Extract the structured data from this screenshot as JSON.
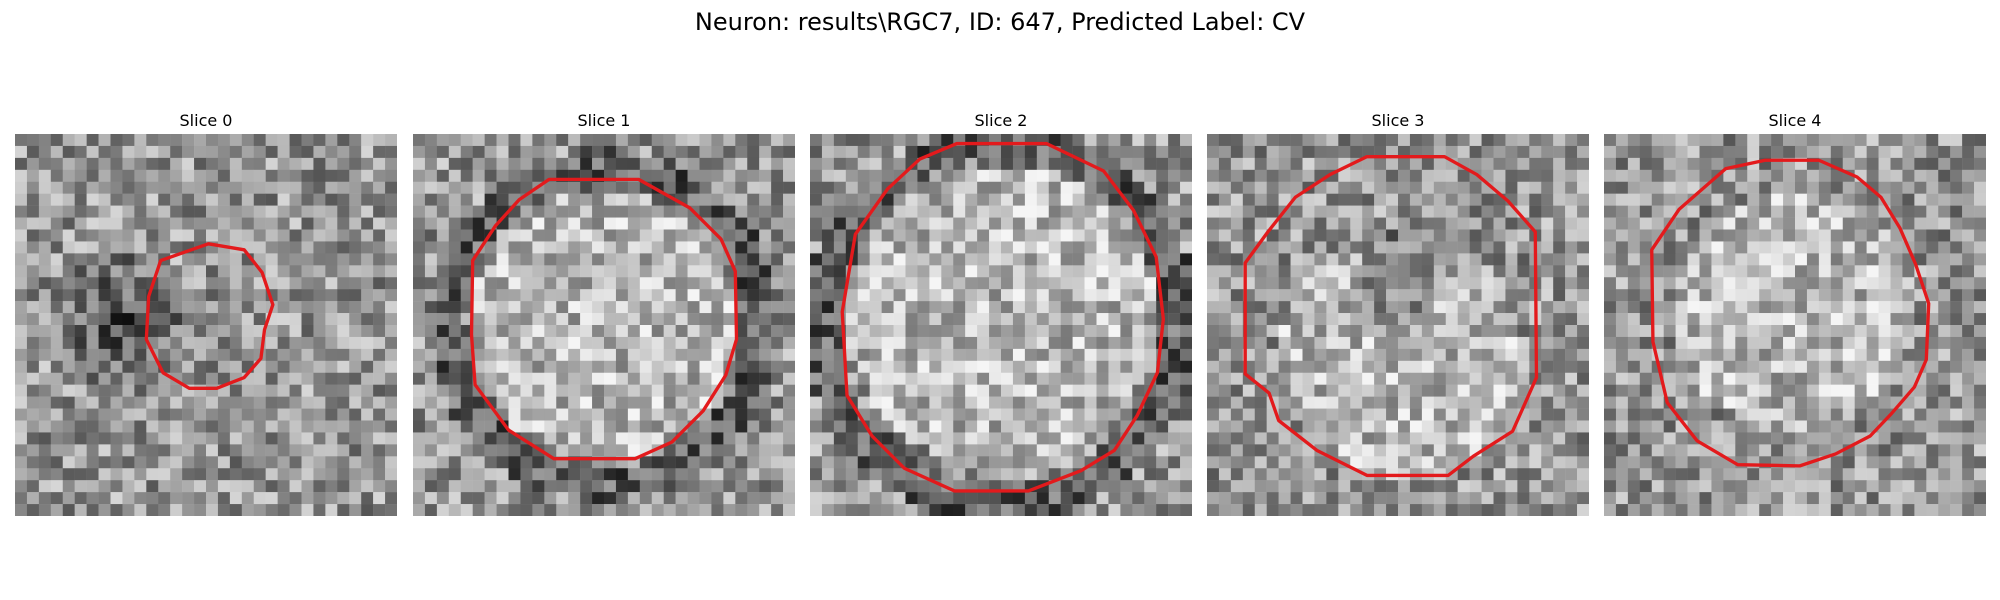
{
  "figure": {
    "title": "Neuron: results\\RGC7, ID: 647, Predicted Label: CV"
  },
  "panels": [
    {
      "title": "Slice 0",
      "image": "grayscale-noise-patch",
      "contour_color": "#e31a1c"
    },
    {
      "title": "Slice 1",
      "image": "grayscale-noise-patch",
      "contour_color": "#e31a1c"
    },
    {
      "title": "Slice 2",
      "image": "grayscale-noise-patch",
      "contour_color": "#e31a1c"
    },
    {
      "title": "Slice 3",
      "image": "grayscale-noise-patch",
      "contour_color": "#e31a1c"
    },
    {
      "title": "Slice 4",
      "image": "grayscale-noise-patch",
      "contour_color": "#e31a1c"
    }
  ]
}
